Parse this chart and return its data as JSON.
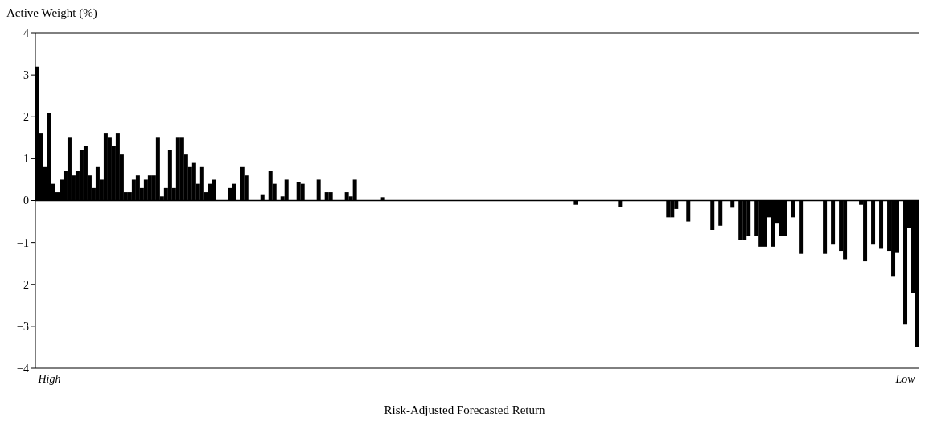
{
  "chart_data": {
    "type": "bar",
    "xlabel": "Risk-Adjusted Forecasted Return",
    "ylabel": "Active Weight (%)",
    "categories": [
      null,
      null,
      null,
      "High",
      null,
      null,
      null,
      null,
      null,
      null,
      null,
      null,
      null,
      null,
      null,
      null,
      null,
      null,
      null,
      null,
      null,
      null,
      null,
      null,
      null,
      null,
      null,
      null,
      null,
      null,
      null,
      null,
      null,
      null,
      null,
      null,
      null,
      null,
      null,
      null,
      null,
      null,
      null,
      null,
      null,
      null,
      null,
      null,
      null,
      null,
      null,
      null,
      null,
      null,
      null,
      null,
      null,
      null,
      null,
      null,
      null,
      null,
      null,
      null,
      null,
      null,
      null,
      null,
      null,
      null,
      null,
      null,
      null,
      null,
      null,
      null,
      null,
      null,
      null,
      null,
      null,
      null,
      null,
      null,
      null,
      null,
      null,
      null,
      null,
      null,
      null,
      null,
      null,
      null,
      null,
      null,
      null,
      null,
      null,
      null,
      null,
      null,
      null,
      null,
      null,
      null,
      null,
      null,
      null,
      null,
      null,
      null,
      null,
      null,
      null,
      null,
      null,
      null,
      null,
      null,
      null,
      null,
      null,
      null,
      null,
      null,
      null,
      null,
      null,
      null,
      null,
      null,
      null,
      null,
      null,
      null,
      null,
      null,
      null,
      null,
      null,
      null,
      null,
      null,
      null,
      null,
      null,
      null,
      null,
      null,
      null,
      null,
      null,
      null,
      null,
      null,
      null,
      null,
      null,
      null,
      null,
      null,
      null,
      null,
      null,
      null,
      null,
      null,
      null,
      null,
      null,
      null,
      null,
      null,
      null,
      null,
      null,
      null,
      null,
      null,
      null,
      null,
      null,
      null,
      null,
      null,
      null,
      null,
      null,
      null,
      null,
      null,
      null,
      null,
      null,
      null,
      null,
      null,
      null,
      null,
      null,
      null,
      null,
      null,
      null,
      null,
      null,
      null,
      null,
      null,
      null,
      null,
      null,
      null,
      null,
      null,
      "Low",
      null,
      null,
      null
    ],
    "values": [
      3.2,
      1.6,
      0.8,
      2.1,
      0.4,
      0.2,
      0.5,
      0.7,
      1.5,
      0.6,
      0.7,
      1.2,
      1.3,
      0.6,
      0.3,
      0.8,
      0.5,
      1.6,
      1.5,
      1.3,
      1.6,
      1.1,
      0.2,
      0.2,
      0.5,
      0.6,
      0.3,
      0.5,
      0.6,
      0.6,
      1.5,
      0.1,
      0.3,
      1.2,
      0.3,
      1.5,
      1.5,
      1.1,
      0.8,
      0.9,
      0.4,
      0.8,
      0.2,
      0.4,
      0.5,
      0,
      0,
      0,
      0.3,
      0.4,
      0,
      0.8,
      0.6,
      0,
      0,
      0,
      0.15,
      0,
      0.7,
      0.4,
      0,
      0.1,
      0.5,
      0,
      0,
      0.45,
      0.4,
      0,
      0,
      0,
      0.5,
      0,
      0.2,
      0.2,
      0,
      0,
      0,
      0.2,
      0.1,
      0.5,
      0,
      0,
      0,
      0,
      0,
      0,
      0.08,
      0,
      0,
      0,
      0,
      0,
      0,
      0,
      0,
      0,
      0,
      0,
      0,
      0,
      0,
      0,
      0,
      0,
      0,
      0,
      0,
      0,
      0,
      0,
      0,
      0,
      0,
      0,
      0,
      0,
      0,
      0,
      0,
      0,
      0,
      0,
      0,
      0,
      0,
      0,
      0,
      0,
      0,
      0,
      0,
      0,
      0,
      0,
      -0.1,
      0,
      0,
      0,
      0,
      0,
      0,
      0,
      0,
      0,
      0,
      -0.15,
      0,
      0,
      0,
      0,
      0,
      0,
      0,
      0,
      0,
      0,
      0,
      -0.4,
      -0.4,
      -0.2,
      0,
      0,
      -0.5,
      0,
      0,
      0,
      0,
      0,
      -0.7,
      0,
      -0.6,
      0,
      0,
      -0.17,
      0,
      -0.95,
      -0.95,
      -0.85,
      0,
      -0.85,
      -1.1,
      -1.1,
      -0.4,
      -1.1,
      -0.55,
      -0.85,
      -0.85,
      0,
      -0.4,
      0,
      -1.27,
      0,
      0,
      0,
      0,
      0,
      -1.27,
      0,
      -1.05,
      0,
      -1.2,
      -1.4,
      0,
      0,
      0,
      -0.1,
      -1.45,
      0,
      -1.05,
      0,
      -1.15,
      0,
      -1.2,
      -1.8,
      -1.25,
      0,
      -2.95,
      -0.65,
      -2.2,
      -3.5
    ],
    "color": "#000000",
    "ylim": [
      -4,
      4
    ],
    "yticks": [
      -4,
      -3,
      -2,
      -1,
      0,
      1,
      2,
      3,
      4
    ],
    "grid": false,
    "ref_lines": [
      {
        "axis": "y",
        "value": 0,
        "color": "#000000"
      }
    ]
  }
}
